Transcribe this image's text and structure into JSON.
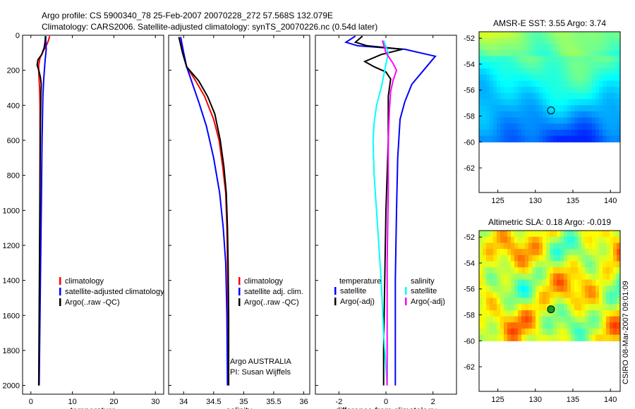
{
  "title": {
    "line1": "Argo profile: CS 5900340_78 25-Feb-2007 20070228_272 57.568S 132.079E",
    "line2": "Climatology: CARS2006. Satellite-adjusted climatology: synTS_20070226.nc (0.54d later)"
  },
  "credit": "CSIRO 08-Mar-2007 09:01:09",
  "colors": {
    "climatology": "#ff0000",
    "satellite": "#0000ff",
    "argo": "#000000",
    "satellite_salinity_diff": "#00ffff",
    "argo_salinity_diff": "#ff00ff"
  },
  "chart_data": [
    {
      "type": "line",
      "xlabel": "temperature",
      "ylabel": "",
      "xlim": [
        -2,
        32
      ],
      "ylim": [
        2050,
        0
      ],
      "yreversed": true,
      "xticks": [
        "0",
        "10",
        "20",
        "30"
      ],
      "xtick_values": [
        0,
        10,
        20,
        30
      ],
      "yticks": [
        "0",
        "200",
        "400",
        "600",
        "800",
        "1000",
        "1200",
        "1400",
        "1600",
        "1800",
        "2000"
      ],
      "ytick_values": [
        0,
        200,
        400,
        600,
        800,
        1000,
        1200,
        1400,
        1600,
        1800,
        2000
      ],
      "legend": [
        "climatology",
        "satellite-adjusted climatology",
        "Argo(..raw -QC)"
      ],
      "legend_position": "lower-right",
      "series": [
        {
          "name": "climatology",
          "color": "climatology",
          "points": [
            [
              4.5,
              5
            ],
            [
              4.3,
              25
            ],
            [
              3.9,
              50
            ],
            [
              3.0,
              90
            ],
            [
              2.2,
              130
            ],
            [
              1.9,
              170
            ],
            [
              1.9,
              210
            ],
            [
              2.0,
              260
            ],
            [
              2.1,
              300
            ],
            [
              2.2,
              400
            ],
            [
              2.2,
              600
            ],
            [
              2.2,
              1000
            ],
            [
              2.1,
              1400
            ],
            [
              2.0,
              1800
            ],
            [
              1.9,
              2000
            ]
          ]
        },
        {
          "name": "satellite-adjusted climatology",
          "color": "satellite",
          "points": [
            [
              3.6,
              5
            ],
            [
              3.6,
              30
            ],
            [
              3.7,
              80
            ],
            [
              3.4,
              150
            ],
            [
              3.1,
              250
            ],
            [
              2.9,
              350
            ],
            [
              2.7,
              600
            ],
            [
              2.5,
              1000
            ],
            [
              2.3,
              1400
            ],
            [
              2.1,
              1800
            ],
            [
              2.0,
              2000
            ]
          ]
        },
        {
          "name": "Argo(..raw -QC)",
          "color": "argo",
          "points": [
            [
              3.5,
              5
            ],
            [
              3.4,
              40
            ],
            [
              3.2,
              70
            ],
            [
              2.6,
              110
            ],
            [
              1.7,
              140
            ],
            [
              1.5,
              170
            ],
            [
              1.9,
              200
            ],
            [
              2.3,
              240
            ],
            [
              2.5,
              280
            ],
            [
              2.4,
              350
            ],
            [
              2.3,
              500
            ],
            [
              2.2,
              800
            ],
            [
              2.1,
              1200
            ],
            [
              2.0,
              1600
            ],
            [
              1.9,
              2000
            ]
          ]
        }
      ]
    },
    {
      "type": "line",
      "xlabel": "salinity",
      "ylabel": "",
      "xlim": [
        33.75,
        36.1
      ],
      "ylim": [
        2050,
        0
      ],
      "yreversed": true,
      "xticks": [
        "34",
        "34.5",
        "35",
        "35.5",
        "36"
      ],
      "xtick_values": [
        34,
        34.5,
        35,
        35.5,
        36
      ],
      "legend": [
        "climatology",
        "satellite adj. clim.",
        "Argo(..raw -QC)"
      ],
      "legend_position": "lower-right",
      "annotations": [
        "Argo AUSTRALIA",
        "PI: Susan Wijffels"
      ],
      "series": [
        {
          "name": "climatology",
          "color": "climatology",
          "points": [
            [
              33.95,
              10
            ],
            [
              34.0,
              100
            ],
            [
              34.05,
              180
            ],
            [
              34.2,
              260
            ],
            [
              34.35,
              350
            ],
            [
              34.5,
              480
            ],
            [
              34.59,
              600
            ],
            [
              34.65,
              750
            ],
            [
              34.7,
              900
            ],
            [
              34.72,
              1100
            ],
            [
              34.73,
              1300
            ],
            [
              34.74,
              1600
            ],
            [
              34.74,
              2000
            ]
          ]
        },
        {
          "name": "satellite adj. clim.",
          "color": "satellite",
          "points": [
            [
              33.95,
              10
            ],
            [
              34.0,
              100
            ],
            [
              34.05,
              180
            ],
            [
              34.15,
              280
            ],
            [
              34.25,
              380
            ],
            [
              34.38,
              520
            ],
            [
              34.5,
              700
            ],
            [
              34.6,
              900
            ],
            [
              34.66,
              1100
            ],
            [
              34.7,
              1300
            ],
            [
              34.72,
              1600
            ],
            [
              34.73,
              2000
            ]
          ]
        },
        {
          "name": "Argo(..raw -QC)",
          "color": "argo",
          "points": [
            [
              33.92,
              10
            ],
            [
              33.98,
              100
            ],
            [
              34.05,
              180
            ],
            [
              34.25,
              260
            ],
            [
              34.4,
              350
            ],
            [
              34.52,
              450
            ],
            [
              34.61,
              600
            ],
            [
              34.67,
              750
            ],
            [
              34.71,
              900
            ],
            [
              34.73,
              1100
            ],
            [
              34.74,
              1300
            ],
            [
              34.75,
              1600
            ],
            [
              34.75,
              2000
            ]
          ]
        }
      ]
    },
    {
      "type": "line",
      "xlabel": "difference from climatology",
      "ylabel": "",
      "xlim": [
        -3.0,
        3.0
      ],
      "ylim": [
        2050,
        0
      ],
      "yreversed": true,
      "xticks": [
        "-2",
        "0",
        "2"
      ],
      "xtick_values": [
        -2,
        0,
        2
      ],
      "legend": [
        "temperature",
        "satellite",
        "Argo(-adj)",
        "salinity",
        "satellite",
        "Argo(-adj)"
      ],
      "legend_position": "lower",
      "series": [
        {
          "name": "temperature satellite",
          "color": "satellite",
          "points": [
            [
              -1.3,
              5
            ],
            [
              -1.7,
              40
            ],
            [
              -1.2,
              60
            ],
            [
              0.8,
              80
            ],
            [
              2.1,
              120
            ],
            [
              1.6,
              200
            ],
            [
              1.1,
              280
            ],
            [
              0.8,
              380
            ],
            [
              0.6,
              480
            ],
            [
              0.5,
              700
            ],
            [
              0.45,
              1000
            ],
            [
              0.4,
              1400
            ],
            [
              0.4,
              1800
            ],
            [
              0.4,
              2000
            ]
          ]
        },
        {
          "name": "temperature Argo(-adj)",
          "color": "argo",
          "points": [
            [
              -1.0,
              5
            ],
            [
              -1.3,
              40
            ],
            [
              -0.8,
              60
            ],
            [
              0.7,
              80
            ],
            [
              -0.2,
              110
            ],
            [
              -0.9,
              150
            ],
            [
              -0.5,
              180
            ],
            [
              0.0,
              210
            ],
            [
              0.2,
              250
            ],
            [
              0.1,
              350
            ],
            [
              0.1,
              600
            ],
            [
              0.0,
              1000
            ],
            [
              -0.05,
              1400
            ],
            [
              -0.1,
              1800
            ],
            [
              -0.1,
              2000
            ]
          ]
        },
        {
          "name": "salinity satellite",
          "color": "satellite_salinity_diff",
          "points": [
            [
              -0.1,
              30
            ],
            [
              0.1,
              100
            ],
            [
              -0.05,
              200
            ],
            [
              -0.2,
              300
            ],
            [
              -0.4,
              400
            ],
            [
              -0.5,
              500
            ],
            [
              -0.55,
              600
            ],
            [
              -0.5,
              800
            ],
            [
              -0.35,
              1100
            ],
            [
              -0.2,
              1400
            ],
            [
              -0.1,
              1700
            ],
            [
              0.05,
              2000
            ]
          ]
        },
        {
          "name": "salinity Argo(-adj)",
          "color": "argo_salinity_diff",
          "points": [
            [
              -0.15,
              30
            ],
            [
              0.0,
              100
            ],
            [
              0.3,
              160
            ],
            [
              0.45,
              200
            ],
            [
              0.3,
              260
            ],
            [
              0.2,
              320
            ],
            [
              0.15,
              420
            ],
            [
              0.1,
              600
            ],
            [
              0.1,
              900
            ],
            [
              0.05,
              1300
            ],
            [
              0.05,
              1700
            ],
            [
              0.05,
              2000
            ]
          ]
        }
      ]
    },
    {
      "type": "heatmap",
      "title": "AMSR-E SST: 3.55  Argo: 3.74",
      "xlim": [
        122.5,
        141.3
      ],
      "ylim": [
        -63.9,
        -51.5
      ],
      "xticks": [
        "125",
        "130",
        "135",
        "140"
      ],
      "xtick_values": [
        125,
        130,
        135,
        140
      ],
      "yticks": [
        "-52",
        "-54",
        "-56",
        "-58",
        "-60",
        "-62"
      ],
      "ytick_values": [
        -52,
        -54,
        -56,
        -58,
        -60,
        -62
      ],
      "data_extent_lat": [
        -60,
        -51.5
      ],
      "marker": {
        "lon": 132.079,
        "lat": -57.568,
        "fill": "none"
      }
    },
    {
      "type": "heatmap",
      "title": "Altimetric SLA: 0.18  Argo: -0.019",
      "xlim": [
        122.5,
        141.3
      ],
      "ylim": [
        -63.9,
        -51.5
      ],
      "xticks": [
        "125",
        "130",
        "135",
        "140"
      ],
      "xtick_values": [
        125,
        130,
        135,
        140
      ],
      "yticks": [
        "-52",
        "-54",
        "-56",
        "-58",
        "-60",
        "-62"
      ],
      "ytick_values": [
        -52,
        -54,
        -56,
        -58,
        -60,
        -62
      ],
      "data_extent_lat": [
        -60,
        -51.5
      ],
      "marker": {
        "lon": 132.079,
        "lat": -57.568,
        "fill": "green"
      }
    }
  ]
}
